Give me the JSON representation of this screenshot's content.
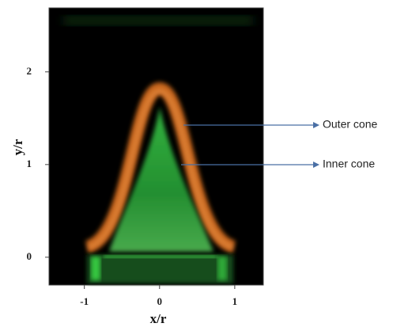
{
  "chart_data": {
    "type": "image",
    "xlabel": "x/r",
    "ylabel": "y/r",
    "xlim": [
      -1.47,
      1.38
    ],
    "ylim": [
      -0.3,
      2.69
    ],
    "xticks": [
      -1,
      0,
      1
    ],
    "yticks": [
      0,
      1,
      2
    ],
    "annotations": [
      {
        "text": "Outer cone"
      },
      {
        "text": "Inner cone"
      }
    ]
  }
}
